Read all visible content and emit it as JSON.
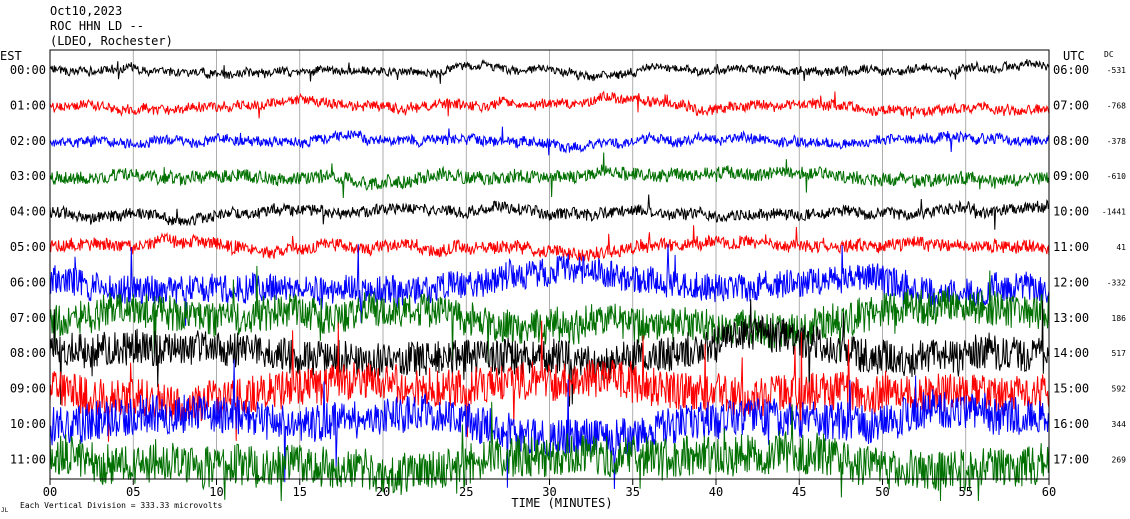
{
  "header": {
    "date": "Oct10,2023",
    "station": "ROC HHN LD --",
    "network": "(LDEO, Rochester)"
  },
  "left_axis_title": "EST",
  "right_axis_title": "UTC",
  "dc_title": "DC",
  "footer": {
    "scale_note": "Each Vertical Division = 333.33 microvolts",
    "mark": "JL"
  },
  "chart_data": {
    "type": "line",
    "title": "",
    "xlabel": "TIME (MINUTES)",
    "ylabel": "",
    "xlim": [
      0,
      60
    ],
    "x_ticks": [
      "00",
      "05",
      "10",
      "15",
      "20",
      "25",
      "30",
      "35",
      "40",
      "45",
      "50",
      "55",
      "60"
    ],
    "traces": [
      {
        "est": "00:00",
        "utc": "06:00",
        "dc": "-531",
        "color": "#000000"
      },
      {
        "est": "01:00",
        "utc": "07:00",
        "dc": "-768",
        "color": "#ff0000"
      },
      {
        "est": "02:00",
        "utc": "08:00",
        "dc": "-378",
        "color": "#0000ff"
      },
      {
        "est": "03:00",
        "utc": "09:00",
        "dc": "-610",
        "color": "#007000"
      },
      {
        "est": "04:00",
        "utc": "10:00",
        "dc": "-1441",
        "color": "#000000"
      },
      {
        "est": "05:00",
        "utc": "11:00",
        "dc": "41",
        "color": "#ff0000"
      },
      {
        "est": "06:00",
        "utc": "12:00",
        "dc": "-332",
        "color": "#0000ff"
      },
      {
        "est": "07:00",
        "utc": "13:00",
        "dc": "186",
        "color": "#007000"
      },
      {
        "est": "08:00",
        "utc": "14:00",
        "dc": "517",
        "color": "#000000"
      },
      {
        "est": "09:00",
        "utc": "15:00",
        "dc": "592",
        "color": "#ff0000"
      },
      {
        "est": "10:00",
        "utc": "16:00",
        "dc": "344",
        "color": "#0000ff"
      },
      {
        "est": "11:00",
        "utc": "17:00",
        "dc": "269",
        "color": "#007000"
      }
    ]
  }
}
